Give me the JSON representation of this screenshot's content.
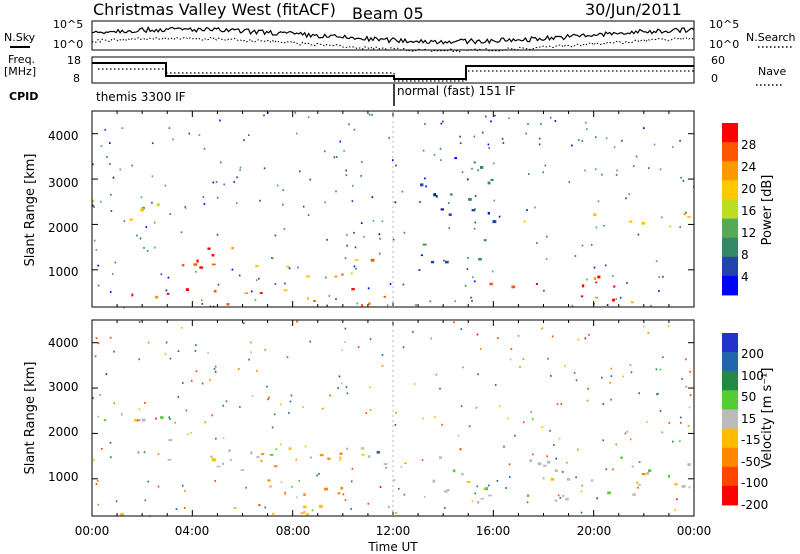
{
  "header": {
    "title": "Christmas Valley West (fitACF)",
    "beam": "Beam 05",
    "date": "30/Jun/2011"
  },
  "panels": {
    "nsky_label": "N.Sky",
    "nsearch_label": "N.Search",
    "nsky_ticks": [
      "10^5",
      "10^0"
    ],
    "nsearch_ticks": [
      "10^5",
      "10^0"
    ],
    "freq_label_1": "Freq.",
    "freq_label_2": "[MHz]",
    "freq_ticks": [
      "18",
      "8"
    ],
    "nave_label": "Nave",
    "nave_ticks": [
      "60",
      "0"
    ],
    "cpid_label": "CPID",
    "cpid_1": "themis 3300 IF",
    "cpid_2": "normal (fast) 151 IF"
  },
  "axes": {
    "ylabel": "Slant Range [km]",
    "xlabel": "Time UT",
    "y_ticks": [
      "4000",
      "3000",
      "2000",
      "1000"
    ],
    "x_ticks": [
      "00:00",
      "04:00",
      "08:00",
      "12:00",
      "16:00",
      "20:00",
      "00:00"
    ]
  },
  "colorbars": {
    "power": {
      "label": "Power [dB]",
      "ticks": [
        "28",
        "24",
        "20",
        "16",
        "12",
        "8",
        "4"
      ],
      "colors": [
        "#ff0000",
        "#ff5500",
        "#ff9900",
        "#ffc800",
        "#bbdd22",
        "#55aa55",
        "#338866",
        "#2244aa",
        "#0000ff"
      ]
    },
    "velocity": {
      "label": "Velocity [m s⁻¹]",
      "ticks": [
        "200",
        "100",
        "50",
        "15",
        "-15",
        "-50",
        "-100",
        "-200"
      ],
      "colors": [
        "#2233cc",
        "#2266aa",
        "#228844",
        "#55cc33",
        "#bbbbbb",
        "#ffbb00",
        "#ff8800",
        "#ff4400",
        "#ff0000"
      ]
    }
  },
  "chart_data": [
    {
      "type": "heatmap",
      "title": "Power",
      "xlabel": "Time UT",
      "ylabel": "Slant Range [km]",
      "x_range": [
        "00:00",
        "24:00"
      ],
      "ylim": [
        180,
        4500
      ],
      "color_scale": {
        "label": "Power [dB]",
        "range": [
          0,
          32
        ]
      },
      "features": [
        {
          "time": [
            0.0,
            2.8
          ],
          "range": [
            1900,
            2600
          ],
          "value": 18
        },
        {
          "time": [
            3.0,
            6.5
          ],
          "range": [
            800,
            1600
          ],
          "value": 28
        },
        {
          "time": [
            6.5,
            11.5
          ],
          "range": [
            800,
            1300
          ],
          "value": 22
        },
        {
          "time": [
            0.0,
            12.0
          ],
          "range": [
            200,
            600
          ],
          "value": 26
        },
        {
          "time": [
            13.0,
            16.0
          ],
          "range": [
            1000,
            3500
          ],
          "value": 6
        },
        {
          "time": [
            15.5,
            22.0
          ],
          "range": [
            300,
            900
          ],
          "value": 28
        },
        {
          "time": [
            17.0,
            24.0
          ],
          "range": [
            1900,
            2300
          ],
          "value": 18
        }
      ]
    },
    {
      "type": "heatmap",
      "title": "Velocity",
      "xlabel": "Time UT",
      "ylabel": "Slant Range [km]",
      "x_range": [
        "00:00",
        "24:00"
      ],
      "ylim": [
        180,
        4500
      ],
      "color_scale": {
        "label": "Velocity [m s-1]",
        "range": [
          -250,
          250
        ]
      },
      "features": [
        {
          "time": [
            0.0,
            3.0
          ],
          "range": [
            1900,
            2600
          ],
          "value": 0
        },
        {
          "time": [
            3.0,
            12.0
          ],
          "range": [
            1200,
            1900
          ],
          "value": 0
        },
        {
          "time": [
            6.0,
            10.0
          ],
          "range": [
            600,
            1600
          ],
          "value": -80
        },
        {
          "time": [
            0.0,
            10.0
          ],
          "range": [
            200,
            500
          ],
          "value": -30
        },
        {
          "time": [
            12.0,
            24.0
          ],
          "range": [
            500,
            1500
          ],
          "value": 0
        }
      ]
    }
  ]
}
